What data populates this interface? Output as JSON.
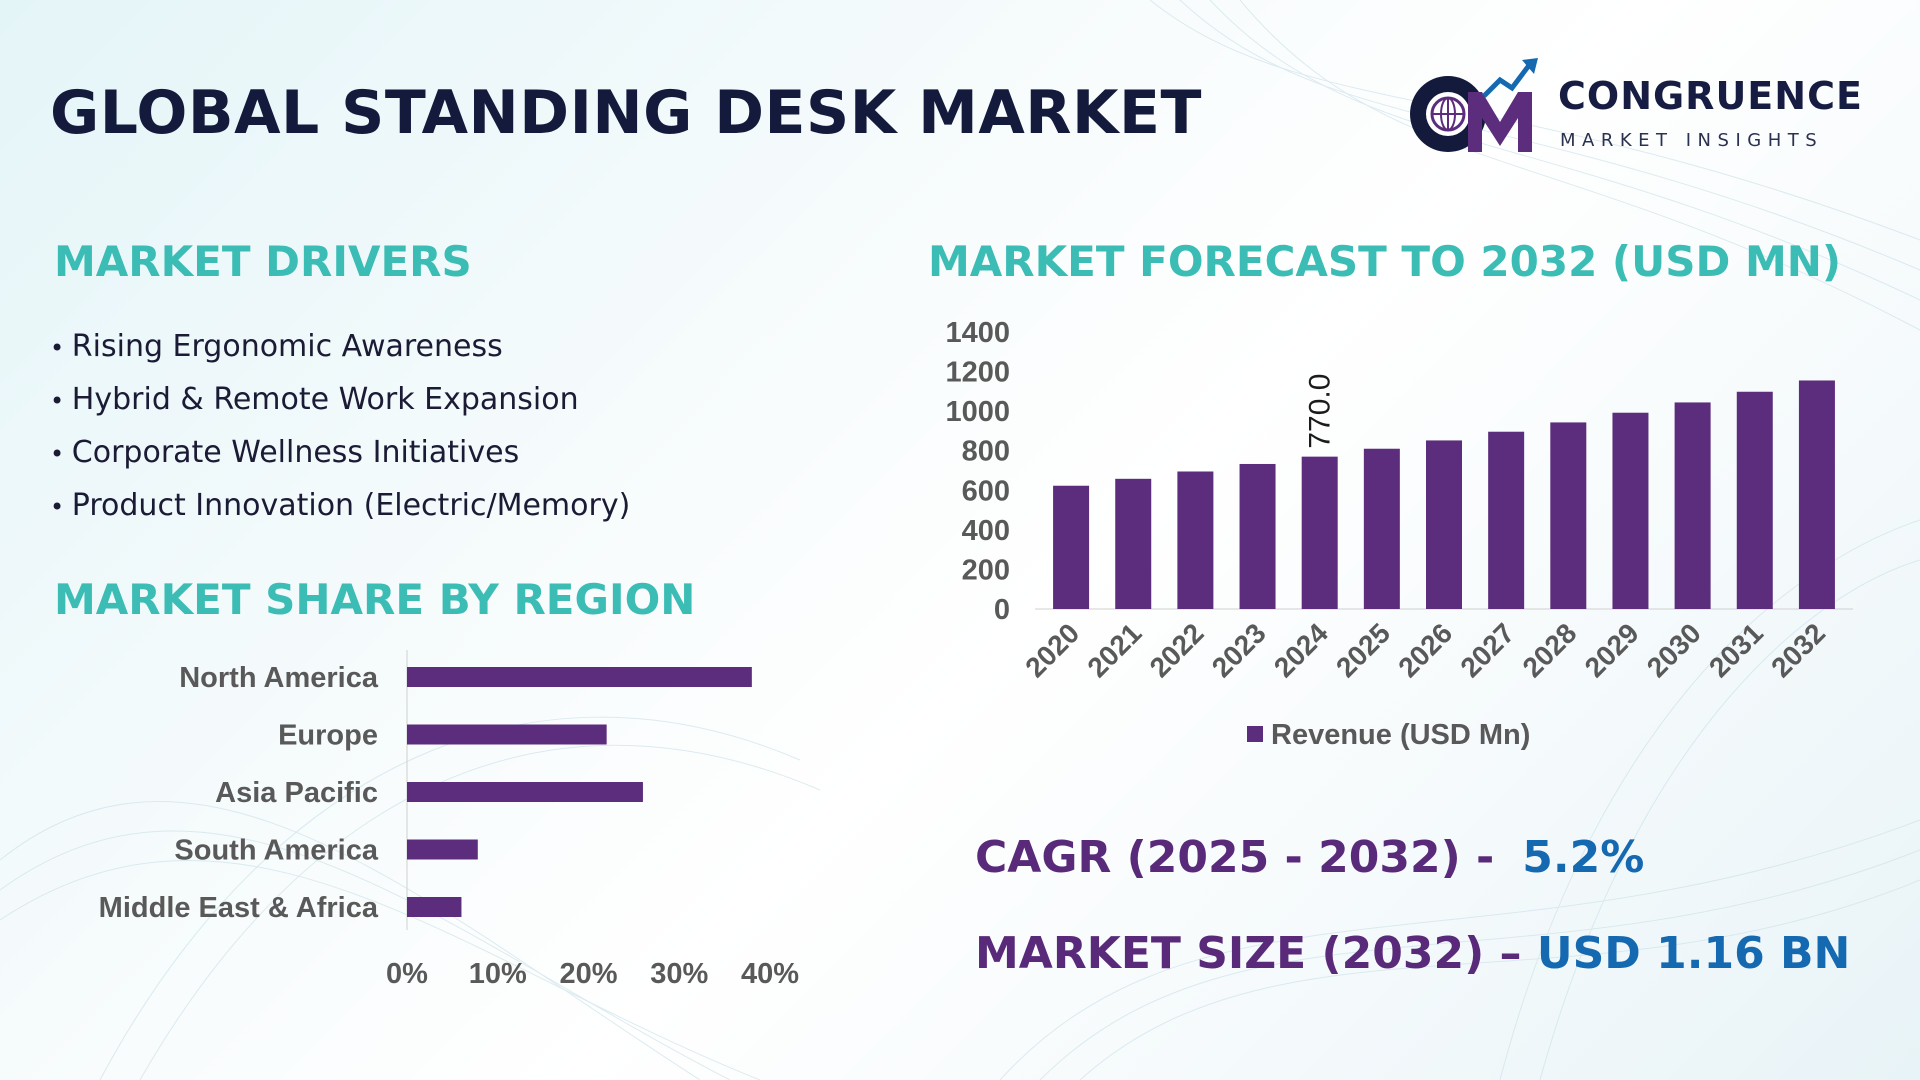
{
  "title": "GLOBAL STANDING DESK MARKET",
  "logo": {
    "name": "CONGRUENCE",
    "subtitle": "MARKET INSIGHTS"
  },
  "drivers": {
    "heading": "MARKET DRIVERS",
    "items": [
      "Rising Ergonomic Awareness",
      "Hybrid & Remote Work Expansion",
      "Corporate Wellness Initiatives",
      "Product Innovation (Electric/Memory)"
    ]
  },
  "region": {
    "heading": "MARKET SHARE BY REGION"
  },
  "forecast": {
    "heading": "MARKET FORECAST TO 2032 (USD MN)"
  },
  "stats": {
    "cagr_label": "CAGR (2025 - 2032) -",
    "cagr_value": "5.2%",
    "size_label": "MARKET SIZE (2032) –",
    "size_value": "USD 1.16 BN"
  },
  "colors": {
    "bar": "#5c2d7c",
    "heading": "#3bbcb4",
    "title": "#141a3c",
    "accent_value": "#1569b0"
  },
  "chart_data": [
    {
      "type": "bar",
      "orientation": "horizontal",
      "categories": [
        "North America",
        "Europe",
        "Asia Pacific",
        "South America",
        "Middle East & Africa"
      ],
      "values": [
        38,
        22,
        26,
        7.8,
        6
      ],
      "xlim": [
        0,
        40
      ],
      "x_ticks": [
        "0%",
        "10%",
        "20%",
        "30%",
        "40%"
      ]
    },
    {
      "type": "bar",
      "categories": [
        "2020",
        "2021",
        "2022",
        "2023",
        "2024",
        "2025",
        "2026",
        "2027",
        "2028",
        "2029",
        "2030",
        "2031",
        "2032"
      ],
      "series": [
        {
          "name": "Revenue (USD Mn)",
          "values": [
            623,
            658,
            695,
            733,
            770,
            810,
            852,
            896,
            943,
            992,
            1044,
            1098,
            1155
          ]
        }
      ],
      "data_labels": {
        "2024": "770.0"
      },
      "ylim": [
        0,
        1400
      ],
      "y_ticks": [
        "0",
        "200",
        "400",
        "600",
        "800",
        "1000",
        "1200",
        "1400"
      ],
      "legend": "bottom"
    }
  ]
}
